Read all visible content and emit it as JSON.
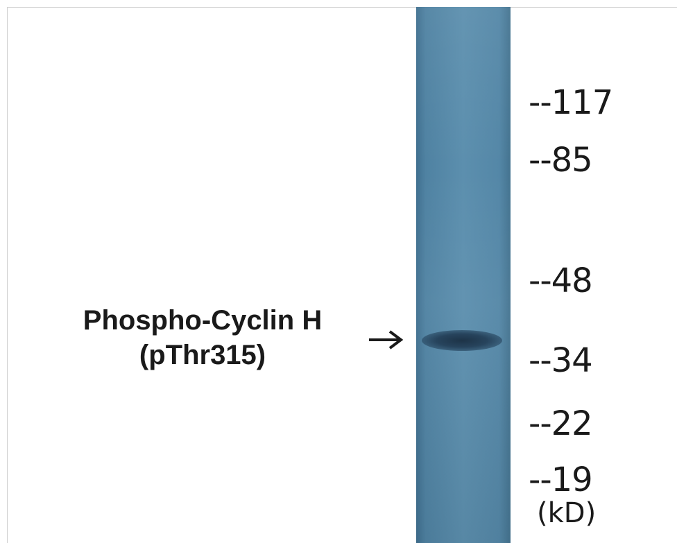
{
  "blot": {
    "protein_name": "Phospho-Cyclin H",
    "site": "(pThr315)",
    "unit": "(kD)",
    "markers": [
      "--117",
      "--85",
      "--48",
      "--34",
      "--22",
      "--19"
    ],
    "band_color": "#1d3347",
    "lane_color": "#5c8fae"
  }
}
